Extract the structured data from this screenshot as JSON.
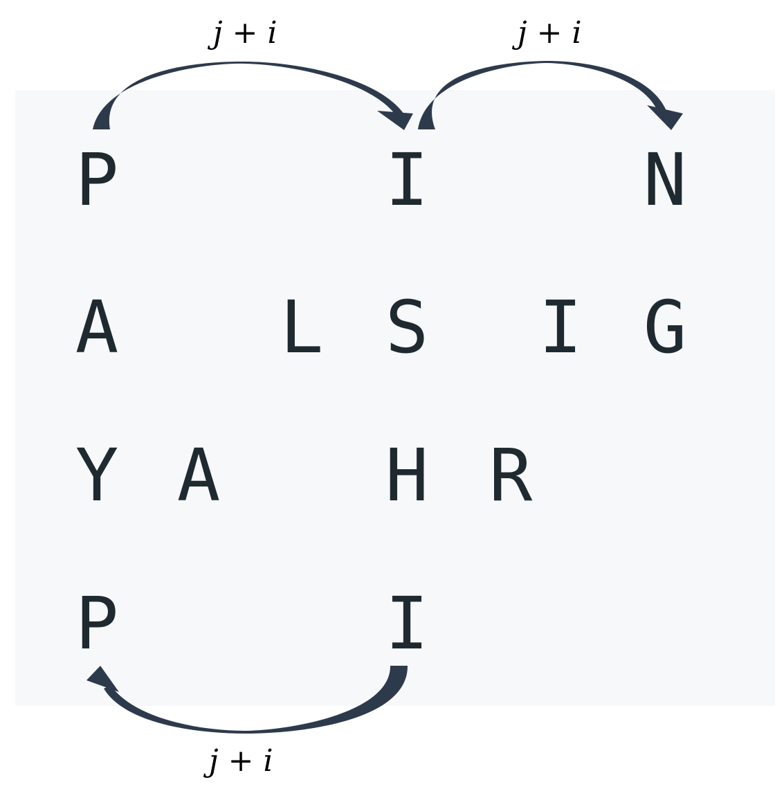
{
  "grid": {
    "rows": [
      [
        "P",
        "",
        "",
        "I",
        "",
        "",
        "N"
      ],
      [
        "A",
        "",
        "L",
        "S",
        "",
        "I",
        "G"
      ],
      [
        "Y",
        "A",
        "",
        "H",
        "R",
        "",
        ""
      ],
      [
        "P",
        "",
        "",
        "I",
        "",
        "",
        ""
      ]
    ]
  },
  "arrows": {
    "top_left": {
      "var1": "j",
      "op": "+",
      "var2": "i"
    },
    "top_right": {
      "var1": "j",
      "op": "+",
      "var2": "i"
    },
    "bottom": {
      "var1": "j",
      "op": "+",
      "var2": "i"
    }
  },
  "colors": {
    "panel": "#f7f8fa",
    "letter": "#1f2a30",
    "arrow": "#2d3a4c"
  }
}
